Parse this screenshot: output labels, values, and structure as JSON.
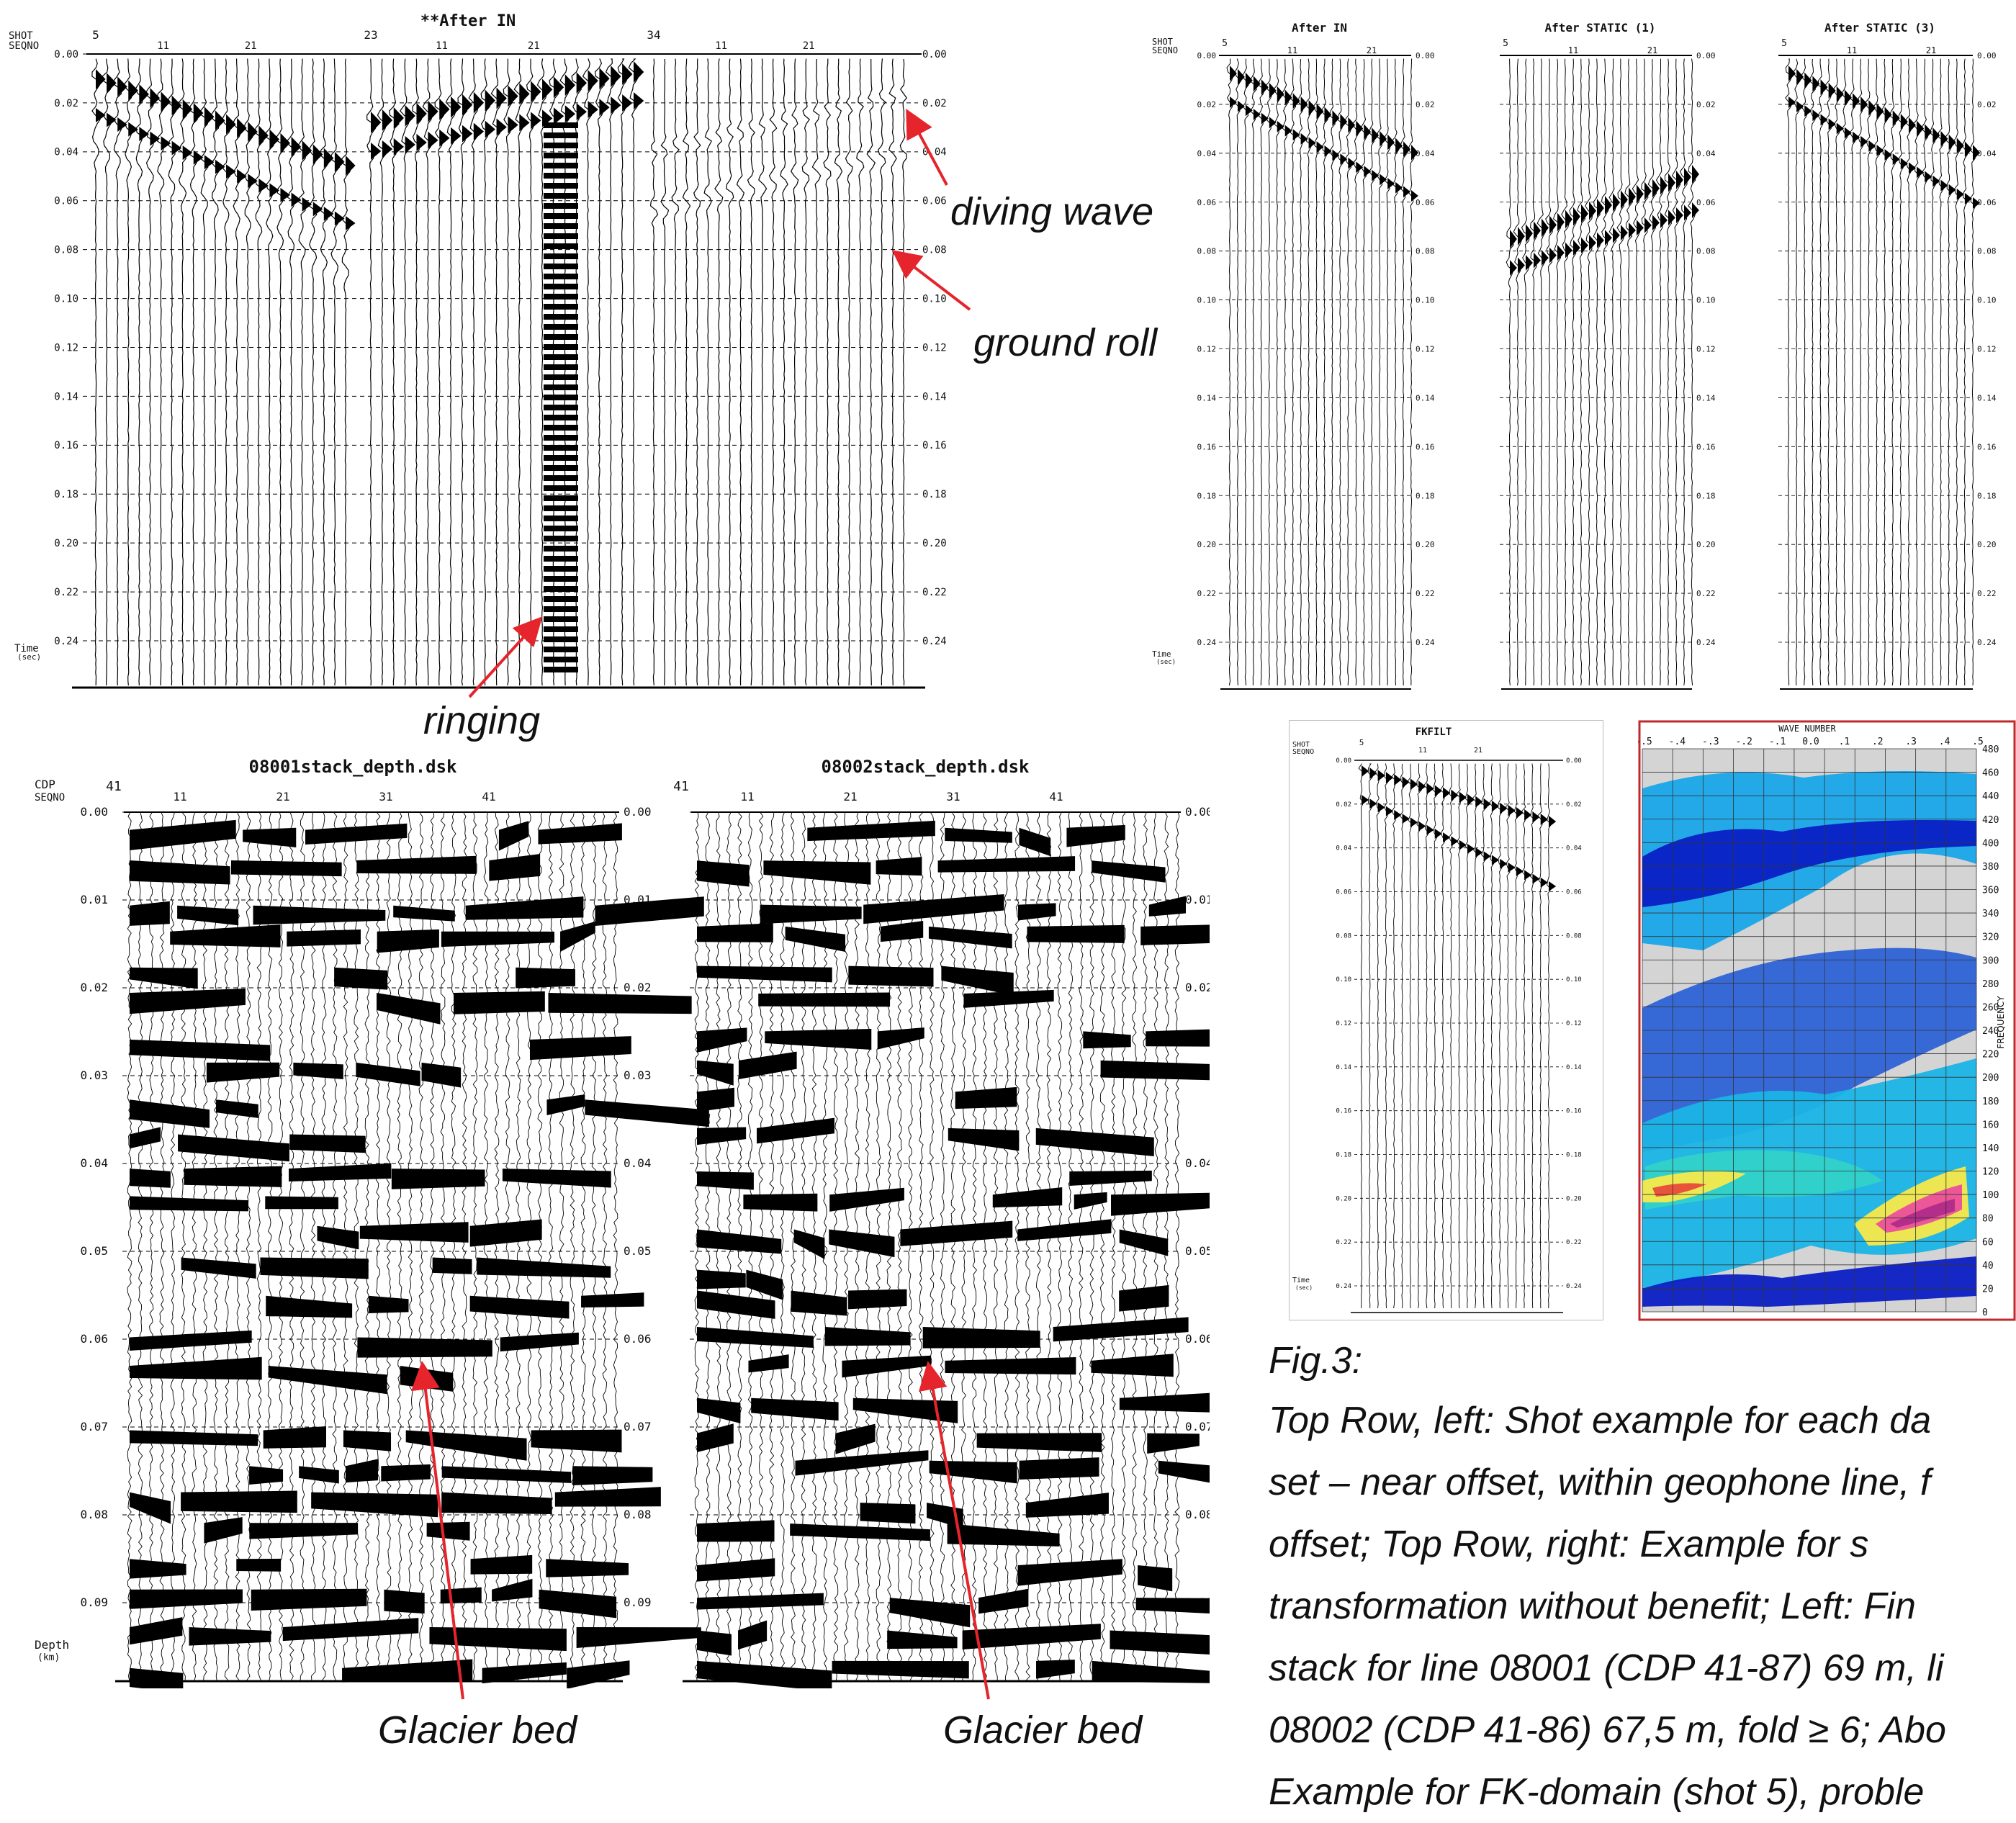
{
  "colors": {
    "arrow": "#e5242c",
    "fk_border": "#c0282c",
    "fk_grid": "#333333"
  },
  "panels": {
    "p1": {
      "title": "**After IN",
      "header_left": [
        "SHOT",
        "SEQNO"
      ],
      "seq_labels": [
        "5",
        "23",
        "34"
      ],
      "trace_labels": [
        "11",
        "21",
        "11",
        "21",
        "11",
        "21"
      ],
      "y_ticks": [
        "0.00",
        "0.02",
        "0.04",
        "0.06",
        "0.08",
        "0.10",
        "0.12",
        "0.14",
        "0.16",
        "0.18",
        "0.20",
        "0.22",
        "0.24"
      ],
      "axis_label": [
        "Time",
        "(sec)"
      ]
    },
    "p2": {
      "header_left": [
        "SHOT",
        "SEQNO"
      ],
      "sub_titles": [
        "After IN",
        "After STATIC (1)",
        "After STATIC (3)"
      ],
      "seq_labels": [
        "5",
        "5",
        "5"
      ],
      "trace_labels": [
        "11",
        "21"
      ],
      "y_ticks": [
        "0.00",
        "0.02",
        "0.04",
        "0.06",
        "0.08",
        "0.10",
        "0.12",
        "0.14",
        "0.16",
        "0.18",
        "0.20",
        "0.22",
        "0.24"
      ],
      "axis_label": [
        "Time",
        "(sec)"
      ]
    },
    "p3": {
      "titles": [
        "08001stack_depth.dsk",
        "08002stack_depth.dsk"
      ],
      "header_left": [
        "CDP",
        "SEQNO"
      ],
      "seq_labels": [
        "41",
        "41"
      ],
      "trace_labels": [
        "11",
        "21",
        "31",
        "41"
      ],
      "y_ticks": [
        "0.00",
        "0.01",
        "0.02",
        "0.03",
        "0.04",
        "0.05",
        "0.06",
        "0.07",
        "0.08",
        "0.09"
      ],
      "axis_label": [
        "Depth",
        "(km)"
      ]
    },
    "p4": {
      "title": "FKFILT",
      "header_left": [
        "SHOT",
        "SEQNO"
      ],
      "seq_label": "5",
      "trace_labels": [
        "11",
        "21"
      ],
      "y_ticks": [
        "0.00",
        "0.02",
        "0.04",
        "0.06",
        "0.08",
        "0.10",
        "0.12",
        "0.14",
        "0.16",
        "0.18",
        "0.20",
        "0.22",
        "0.24"
      ],
      "axis_label": [
        "Time",
        "(sec)"
      ]
    },
    "fk": {
      "x_title": "WAVE NUMBER",
      "x_ticks": [
        "-.5",
        "-.4",
        "-.3",
        "-.2",
        "-.1",
        "0.0",
        ".1",
        ".2",
        ".3",
        ".4",
        ".5"
      ],
      "y_ticks": [
        "480",
        "460",
        "440",
        "420",
        "400",
        "380",
        "360",
        "340",
        "320",
        "300",
        "280",
        "260",
        "240",
        "220",
        "200",
        "180",
        "160",
        "140",
        "120",
        "100",
        "80",
        "60",
        "40",
        "20",
        "0"
      ],
      "y_label": "FREQUENCY"
    }
  },
  "annotations": {
    "diving": "diving wave",
    "ground": "ground roll",
    "ringing": "ringing",
    "glacier1": "Glacier bed",
    "glacier2": "Glacier bed"
  },
  "caption": {
    "title": "Fig.3:",
    "lines": [
      "Top Row, left: Shot example for each da",
      "set – near offset, within geophone line, f",
      "offset; Top Row, right: Example for s",
      "transformation without benefit; Left: Fin",
      "stack for line 08001 (CDP 41-87) 69 m, li",
      "08002 (CDP 41-86) 67,5 m, fold ≥ 6; Abo",
      "Example for FK-domain (shot 5), proble"
    ]
  }
}
